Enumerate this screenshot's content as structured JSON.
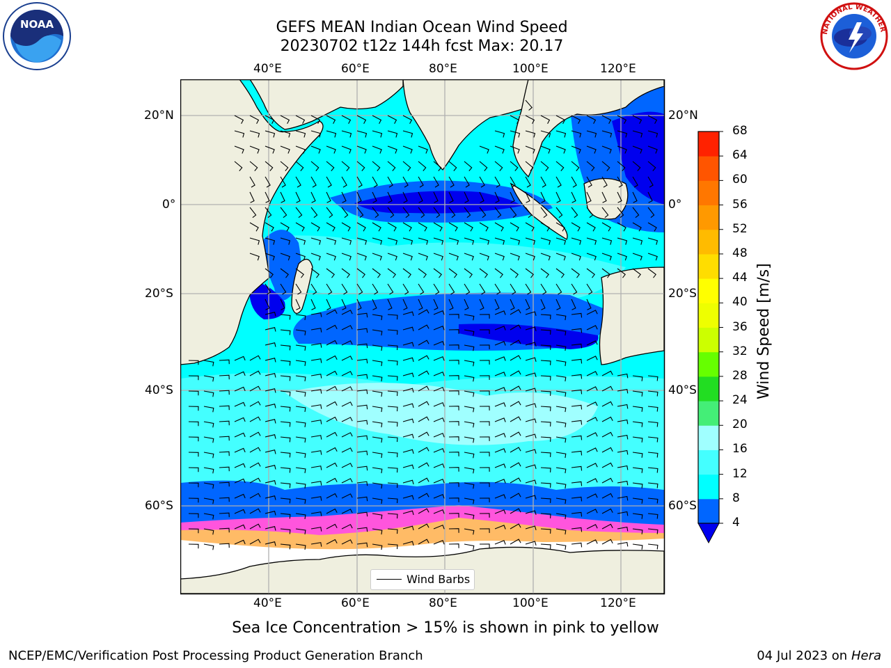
{
  "header": {
    "title_line1": "GEFS MEAN Indian Ocean Wind Speed",
    "title_line2": "20230702 t12z 144h fcst   Max: 20.17"
  },
  "logos": {
    "left": {
      "icon": "noaa-logo-icon",
      "text": "NOAA"
    },
    "right": {
      "icon": "nws-logo-icon",
      "text": "NATIONAL WEATHER SERVICE"
    }
  },
  "map": {
    "lon_labels": [
      "40°E",
      "60°E",
      "80°E",
      "100°E",
      "120°E"
    ],
    "lat_labels_left": [
      "20°N",
      "0°",
      "20°S",
      "40°S",
      "60°S"
    ],
    "lat_labels_right": [
      "20°N",
      "0°",
      "20°S",
      "40°S",
      "60°S"
    ],
    "legend_label": "Wind Barbs",
    "land_color": "#efefdf",
    "ocean_color": "#00ffff"
  },
  "colorbar": {
    "title": "Wind Speed [m/s]",
    "ticks": [
      "4",
      "8",
      "12",
      "16",
      "20",
      "24",
      "28",
      "32",
      "36",
      "40",
      "44",
      "48",
      "52",
      "56",
      "60",
      "64",
      "68"
    ],
    "colors": [
      "#0066ff",
      "#00ffff",
      "#44ffff",
      "#a0ffff",
      "#44ee77",
      "#22dd22",
      "#66ff00",
      "#ccff00",
      "#eeff00",
      "#ffff00",
      "#ffdd00",
      "#ffbb00",
      "#ff9900",
      "#ff7700",
      "#ff5500",
      "#ff2200"
    ],
    "under_color": "#0000ee"
  },
  "caption": "Sea Ice Concentration > 15% is shown in pink to yellow",
  "footer": {
    "left": "NCEP/EMC/Verification Post Processing Product Generation Branch",
    "right_date": "04 Jul 2023 on ",
    "right_host": "Hera"
  }
}
